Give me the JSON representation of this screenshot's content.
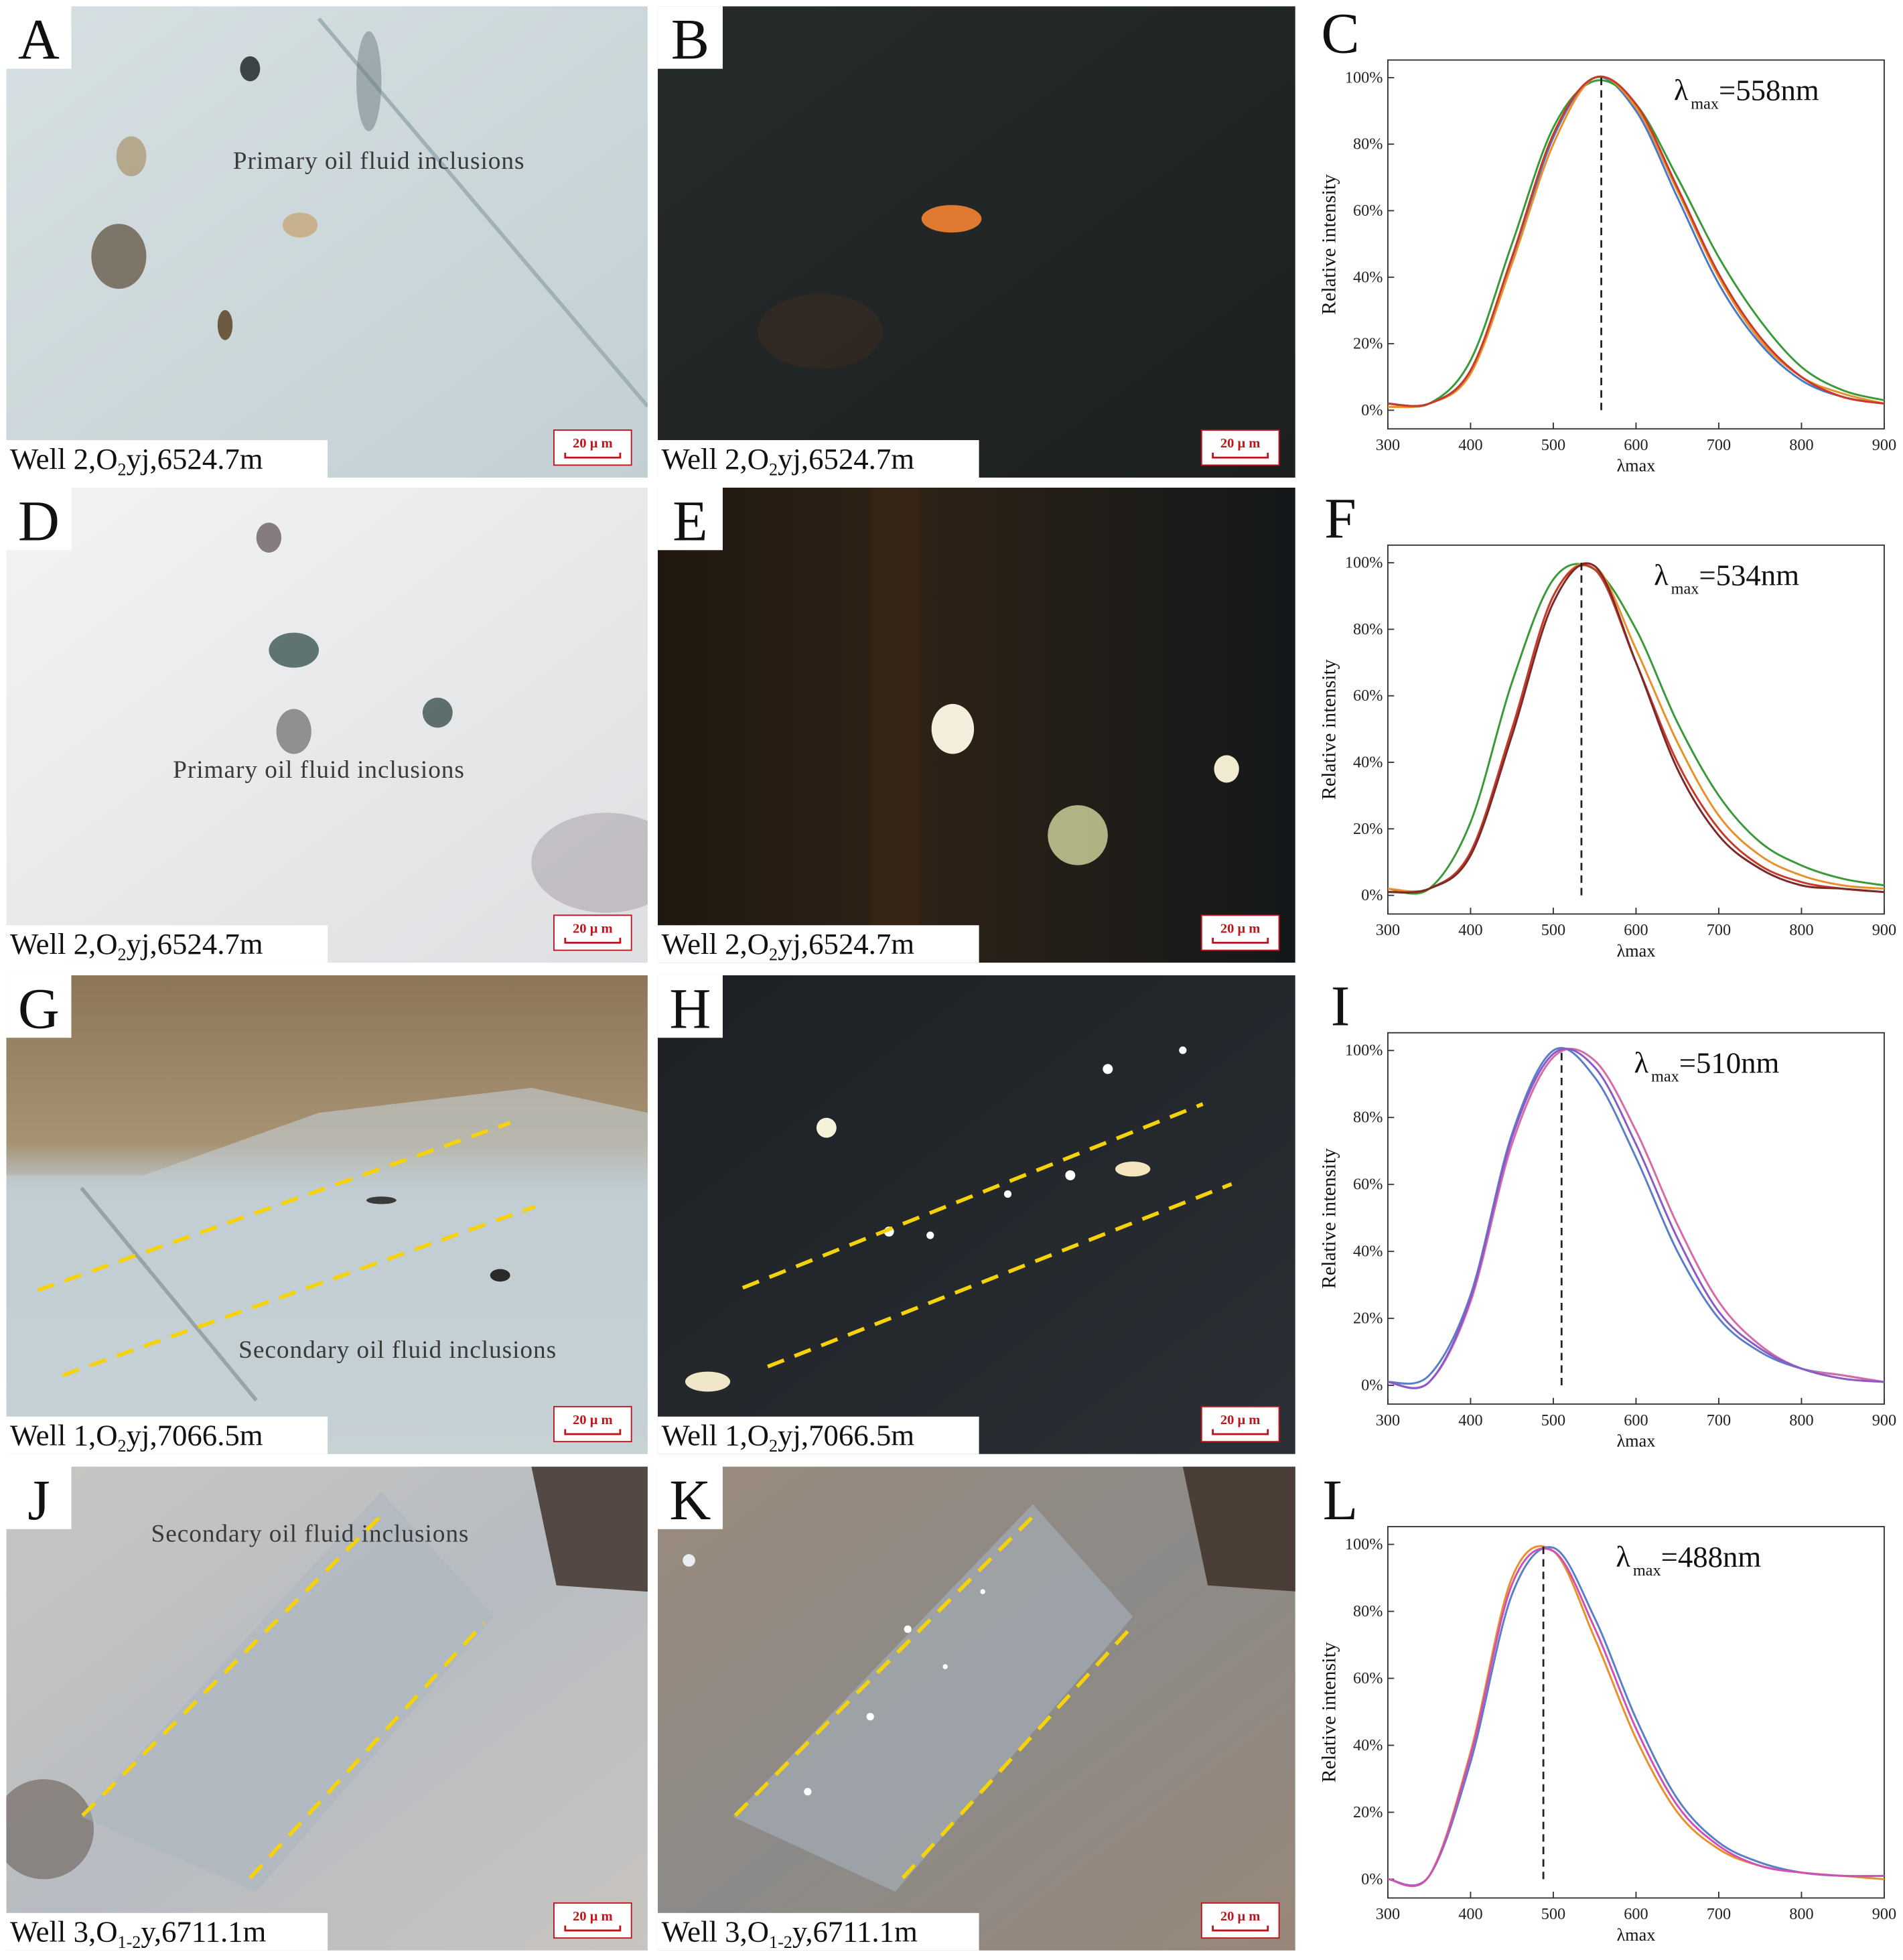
{
  "panels": [
    {
      "label": "A",
      "caption": {
        "pre": "Well 2,O",
        "sub": "2",
        "post": "yj,6524.7m"
      },
      "scale_bar": "20 μ m",
      "annotation": "Primary  oil  fluid inclusions"
    },
    {
      "label": "B",
      "caption": {
        "pre": "Well 2,O",
        "sub": "2",
        "post": "yj,6524.7m"
      },
      "scale_bar": "20 μ m"
    },
    {
      "label": "D",
      "caption": {
        "pre": "Well 2,O",
        "sub": "2",
        "post": "yj,6524.7m"
      },
      "scale_bar": "20 μ m",
      "annotation": "Primary  oil  fluid inclusions"
    },
    {
      "label": "E",
      "caption": {
        "pre": "Well 2,O",
        "sub": "2",
        "post": "yj,6524.7m"
      },
      "scale_bar": "20 μ m"
    },
    {
      "label": "G",
      "caption": {
        "pre": "Well 1,O",
        "sub": "2",
        "post": "yj,7066.5m"
      },
      "scale_bar": "20 μ m",
      "annotation": "Secondary  oil  fluid inclusions"
    },
    {
      "label": "H",
      "caption": {
        "pre": "Well 1,O",
        "sub": "2",
        "post": "yj,7066.5m"
      },
      "scale_bar": "20 μ m"
    },
    {
      "label": "J",
      "caption": {
        "pre": "Well 3,O",
        "sub": "1-2",
        "post": "y,6711.1m"
      },
      "scale_bar": "20 μ m",
      "annotation": "Secondary  oil  fluid inclusions"
    },
    {
      "label": "K",
      "caption": {
        "pre": "Well 3,O",
        "sub": "1-2",
        "post": "y,6711.1m"
      },
      "scale_bar": "20 μ m"
    }
  ],
  "chart_data": [
    {
      "type": "line",
      "panel_label": "C",
      "xlabel": "λmax",
      "ylabel": "Relative intensity",
      "peak": {
        "symbol": "λ",
        "sub": "max",
        "text": "=558nm",
        "value": 558
      },
      "xlim": [
        300,
        900
      ],
      "ylim": [
        -5.6,
        105.3
      ],
      "xticks": [
        300,
        400,
        500,
        600,
        700,
        800,
        900
      ],
      "yticks": [
        {
          "value": 0,
          "label": "0%"
        },
        {
          "value": 20,
          "label": "20%"
        },
        {
          "value": 40,
          "label": "40%"
        },
        {
          "value": 60,
          "label": "60%"
        },
        {
          "value": 80,
          "label": "80%"
        },
        {
          "value": 100,
          "label": "100%"
        }
      ],
      "x": [
        300,
        350,
        400,
        450,
        500,
        550,
        600,
        650,
        700,
        750,
        800,
        850,
        900
      ],
      "series": [
        {
          "color": "#4a78c8",
          "values": [
            2,
            2,
            12,
            45,
            82,
            100,
            90,
            64,
            38,
            20,
            9,
            4,
            2
          ]
        },
        {
          "color": "#3a9a3a",
          "values": [
            2,
            2,
            15,
            50,
            85,
            99,
            92,
            70,
            46,
            27,
            13,
            6,
            3
          ]
        },
        {
          "color": "#e8902a",
          "values": [
            1,
            2,
            11,
            44,
            80,
            100,
            91,
            66,
            40,
            21,
            10,
            5,
            2
          ]
        },
        {
          "color": "#c83a2a",
          "values": [
            2,
            2,
            12,
            46,
            83,
            100,
            92,
            67,
            41,
            22,
            10,
            4,
            2
          ]
        }
      ]
    },
    {
      "type": "line",
      "panel_label": "F",
      "xlabel": "λmax",
      "ylabel": "Relative intensity",
      "peak": {
        "symbol": "λ",
        "sub": "max",
        "text": "=534nm",
        "value": 534
      },
      "xlim": [
        300,
        900
      ],
      "ylim": [
        -5.6,
        105.3
      ],
      "xticks": [
        300,
        400,
        500,
        600,
        700,
        800,
        900
      ],
      "yticks": [
        {
          "value": 0,
          "label": "0%"
        },
        {
          "value": 20,
          "label": "20%"
        },
        {
          "value": 40,
          "label": "40%"
        },
        {
          "value": 60,
          "label": "60%"
        },
        {
          "value": 80,
          "label": "80%"
        },
        {
          "value": 100,
          "label": "100%"
        }
      ],
      "x": [
        300,
        350,
        400,
        450,
        500,
        550,
        600,
        650,
        700,
        750,
        800,
        850,
        900
      ],
      "series": [
        {
          "color": "#3a9a3a",
          "values": [
            2,
            2,
            22,
            64,
            95,
            98,
            80,
            52,
            30,
            16,
            9,
            5,
            3
          ]
        },
        {
          "color": "#e8902a",
          "values": [
            2,
            2,
            13,
            50,
            90,
            99,
            74,
            46,
            24,
            12,
            6,
            3,
            2
          ]
        },
        {
          "color": "#c83a2a",
          "values": [
            1,
            2,
            13,
            50,
            90,
            98,
            70,
            40,
            20,
            9,
            4,
            2,
            1
          ]
        },
        {
          "color": "#7a2a2a",
          "values": [
            1,
            2,
            12,
            48,
            88,
            99,
            70,
            38,
            18,
            8,
            3,
            2,
            1
          ]
        }
      ]
    },
    {
      "type": "line",
      "panel_label": "I",
      "xlabel": "λmax",
      "ylabel": "Relative intensity",
      "peak": {
        "symbol": "λ",
        "sub": "max",
        "text": "=510nm",
        "value": 510
      },
      "xlim": [
        300,
        900
      ],
      "ylim": [
        -5.6,
        105.3
      ],
      "xticks": [
        300,
        400,
        500,
        600,
        700,
        800,
        900
      ],
      "yticks": [
        {
          "value": 0,
          "label": "0%"
        },
        {
          "value": 20,
          "label": "20%"
        },
        {
          "value": 40,
          "label": "40%"
        },
        {
          "value": 60,
          "label": "60%"
        },
        {
          "value": 80,
          "label": "80%"
        },
        {
          "value": 100,
          "label": "100%"
        }
      ],
      "x": [
        300,
        350,
        400,
        450,
        500,
        550,
        600,
        650,
        700,
        750,
        800,
        850,
        900
      ],
      "series": [
        {
          "color": "#5a7ec8",
          "values": [
            1,
            3,
            27,
            75,
            100,
            92,
            68,
            40,
            20,
            10,
            5,
            3,
            1
          ]
        },
        {
          "color": "#d86aa8",
          "values": [
            1,
            1,
            25,
            72,
            98,
            97,
            76,
            48,
            25,
            12,
            5,
            3,
            1
          ]
        },
        {
          "color": "#8a5ac8",
          "values": [
            1,
            1,
            26,
            74,
            99,
            95,
            72,
            44,
            22,
            11,
            5,
            2,
            1
          ]
        }
      ]
    },
    {
      "type": "line",
      "panel_label": "L",
      "xlabel": "λmax",
      "ylabel": "Relative intensity",
      "peak": {
        "symbol": "λ",
        "sub": "max",
        "text": "=488nm",
        "value": 488
      },
      "xlim": [
        300,
        900
      ],
      "ylim": [
        -5.6,
        105.3
      ],
      "xticks": [
        300,
        400,
        500,
        600,
        700,
        800,
        900
      ],
      "yticks": [
        {
          "value": 0,
          "label": "0%"
        },
        {
          "value": 20,
          "label": "20%"
        },
        {
          "value": 40,
          "label": "40%"
        },
        {
          "value": 60,
          "label": "60%"
        },
        {
          "value": 80,
          "label": "80%"
        },
        {
          "value": 100,
          "label": "100%"
        }
      ],
      "x": [
        300,
        350,
        400,
        450,
        500,
        550,
        600,
        650,
        700,
        750,
        800,
        850,
        900
      ],
      "series": [
        {
          "color": "#e8902a",
          "values": [
            0,
            1,
            38,
            90,
            98,
            72,
            42,
            20,
            9,
            4,
            2,
            1,
            0
          ]
        },
        {
          "color": "#5a7ec8",
          "values": [
            0,
            1,
            35,
            85,
            99,
            78,
            48,
            24,
            11,
            5,
            2,
            1,
            1
          ]
        },
        {
          "color": "#d050b8",
          "values": [
            0,
            1,
            37,
            88,
            98,
            75,
            45,
            22,
            10,
            4,
            2,
            1,
            1
          ]
        }
      ]
    }
  ]
}
